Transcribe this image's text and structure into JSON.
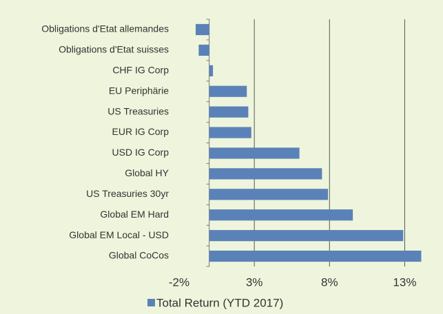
{
  "chart_data": {
    "type": "hbar",
    "categories": [
      "Obligations d'Etat allemandes",
      "Obligations d'Etat suisses",
      "CHF IG Corp",
      "EU Periphärie",
      "US Treasuries",
      "EUR IG Corp",
      "USD IG Corp",
      "Global HY",
      "US Treasuries 30yr",
      "Global EM Hard",
      "Global EM Local - USD",
      "Global CoCos"
    ],
    "series": [
      {
        "name": "Total Return (YTD 2017)",
        "color": "#5b82b8",
        "values": [
          -0.9,
          -0.7,
          0.25,
          2.5,
          2.6,
          2.8,
          6.0,
          7.5,
          7.9,
          9.55,
          12.9,
          14.1
        ]
      }
    ],
    "xlim": [
      -2,
      15.5
    ],
    "xticks": [
      {
        "value": -2,
        "label": "-2%"
      },
      {
        "value": 3,
        "label": "3%"
      },
      {
        "value": 8,
        "label": "8%"
      },
      {
        "value": 13,
        "label": "13%"
      }
    ],
    "grid": true,
    "legend": "bottom"
  }
}
